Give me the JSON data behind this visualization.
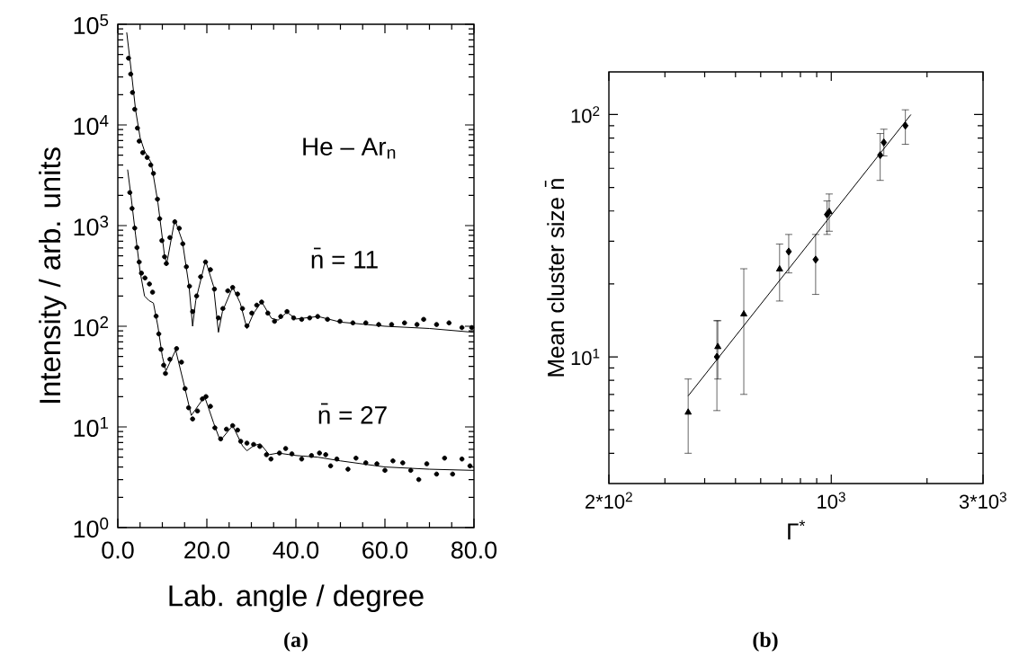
{
  "chart_data": [
    {
      "type": "scatter",
      "xlabel": "Lab. angle / degree",
      "ylabel": "Intensity / arb. units",
      "log": "y",
      "xlim": [
        0,
        80
      ],
      "ylim": [
        1,
        100000
      ],
      "xticks": [
        {
          "value": 0,
          "label": "0.0"
        },
        {
          "value": 5,
          "label": null
        },
        {
          "value": 10,
          "label": null
        },
        {
          "value": 15,
          "label": null
        },
        {
          "value": 20,
          "label": "20.0"
        },
        {
          "value": 25,
          "label": null
        },
        {
          "value": 30,
          "label": null
        },
        {
          "value": 35,
          "label": null
        },
        {
          "value": 40,
          "label": "40.0"
        },
        {
          "value": 45,
          "label": null
        },
        {
          "value": 50,
          "label": null
        },
        {
          "value": 55,
          "label": null
        },
        {
          "value": 60,
          "label": "60.0"
        },
        {
          "value": 65,
          "label": null
        },
        {
          "value": 70,
          "label": null
        },
        {
          "value": 75,
          "label": null
        },
        {
          "value": 80,
          "label": "80.0"
        }
      ],
      "yticks": [
        {
          "value": 1,
          "label": "10$^{0}$"
        },
        {
          "value": 2,
          "label": null
        },
        {
          "value": 3,
          "label": null
        },
        {
          "value": 4,
          "label": null
        },
        {
          "value": 5,
          "label": null
        },
        {
          "value": 6,
          "label": null
        },
        {
          "value": 7,
          "label": null
        },
        {
          "value": 8,
          "label": null
        },
        {
          "value": 9,
          "label": null
        },
        {
          "value": 10,
          "label": "10$^{1}$"
        },
        {
          "value": 20,
          "label": null
        },
        {
          "value": 30,
          "label": null
        },
        {
          "value": 40,
          "label": null
        },
        {
          "value": 50,
          "label": null
        },
        {
          "value": 60,
          "label": null
        },
        {
          "value": 70,
          "label": null
        },
        {
          "value": 80,
          "label": null
        },
        {
          "value": 90,
          "label": null
        },
        {
          "value": 100,
          "label": "10$^{2}$"
        },
        {
          "value": 200,
          "label": null
        },
        {
          "value": 300,
          "label": null
        },
        {
          "value": 400,
          "label": null
        },
        {
          "value": 500,
          "label": null
        },
        {
          "value": 600,
          "label": null
        },
        {
          "value": 700,
          "label": null
        },
        {
          "value": 800,
          "label": null
        },
        {
          "value": 900,
          "label": null
        },
        {
          "value": 1000,
          "label": "10$^{3}$"
        },
        {
          "value": 2000,
          "label": null
        },
        {
          "value": 3000,
          "label": null
        },
        {
          "value": 4000,
          "label": null
        },
        {
          "value": 5000,
          "label": null
        },
        {
          "value": 6000,
          "label": null
        },
        {
          "value": 7000,
          "label": null
        },
        {
          "value": 8000,
          "label": null
        },
        {
          "value": 9000,
          "label": null
        },
        {
          "value": 10000,
          "label": "10$^{4}$"
        },
        {
          "value": 20000,
          "label": null
        },
        {
          "value": 30000,
          "label": null
        },
        {
          "value": 40000,
          "label": null
        },
        {
          "value": 50000,
          "label": null
        },
        {
          "value": 60000,
          "label": null
        },
        {
          "value": 70000,
          "label": null
        },
        {
          "value": 80000,
          "label": null
        },
        {
          "value": 90000,
          "label": null
        },
        {
          "value": 100000,
          "label": "10$^{5}$"
        }
      ],
      "series": [
        {
          "marker": "circle",
          "color": "#000000",
          "x": [
            2.4,
            2.9,
            3.3,
            3.8,
            4.4,
            4.8,
            5.6,
            6.6,
            7.4,
            8.0,
            8.9,
            9.4,
            9.9,
            10.5,
            10.9,
            11.7,
            12.8,
            13.8,
            14.6,
            15.4,
            16.1,
            16.8,
            17.7,
            18.6,
            19.7,
            20.8,
            21.7,
            22.6,
            23.6,
            24.7,
            25.8,
            26.9,
            28.0,
            29.0,
            30.1,
            31.2,
            32.3,
            33.7,
            35.2,
            36.6,
            38.0,
            39.5,
            41.3,
            43.1,
            44.9,
            47.1,
            49.9,
            52.8,
            55.7,
            58.6,
            61.5,
            64.4,
            67.2,
            68.7,
            71.6,
            74.4,
            77.3,
            79.5
          ],
          "values": [
            46000,
            32000,
            21000,
            14300,
            9300,
            6900,
            5300,
            4750,
            4000,
            3300,
            1830,
            1170,
            710,
            490,
            420,
            760,
            1090,
            940,
            660,
            390,
            250,
            140,
            200,
            310,
            435,
            365,
            234,
            121,
            150,
            225,
            243,
            209,
            150,
            101,
            135,
            162,
            174,
            135,
            112,
            125,
            140,
            121,
            117,
            121,
            125,
            117,
            112,
            108,
            108,
            104,
            104,
            108,
            104,
            117,
            104,
            108,
            97,
            97
          ]
        },
        {
          "type": "line",
          "marker": "none",
          "color": "#000000",
          "x": [
            2.0,
            3.0,
            4.0,
            5.0,
            6.0,
            7.5,
            9.0,
            10.5,
            11.0,
            12.8,
            14.5,
            16.0,
            16.8,
            17.5,
            19.7,
            21.5,
            22.6,
            23.5,
            25.8,
            27.5,
            29.0,
            30.5,
            32.3,
            34.5,
            36.0,
            38.0,
            40.0,
            45.0,
            50.0,
            60.0,
            70.0,
            80.0
          ],
          "values": [
            83000,
            35000,
            14000,
            7500,
            5500,
            4200,
            1700,
            500,
            420,
            1150,
            700,
            250,
            100,
            180,
            450,
            250,
            87,
            140,
            245,
            170,
            95,
            135,
            175,
            120,
            115,
            138,
            118,
            125,
            110,
            100,
            95,
            87
          ]
        },
        {
          "marker": "circle",
          "color": "#000000",
          "x": [
            2.7,
            3.2,
            3.8,
            4.3,
            4.8,
            5.3,
            6.1,
            7.1,
            7.8,
            8.6,
            9.2,
            9.7,
            10.3,
            10.7,
            11.7,
            13.2,
            14.3,
            15.1,
            15.9,
            16.8,
            17.9,
            19.0,
            19.8,
            20.8,
            21.8,
            23.1,
            24.4,
            25.8,
            26.9,
            27.6,
            29.0,
            30.5,
            31.9,
            33.4,
            34.4,
            36.3,
            37.7,
            39.1,
            41.3,
            43.5,
            45.3,
            46.7,
            47.8,
            49.2,
            51.7,
            53.5,
            55.7,
            58.2,
            60.0,
            61.8,
            64.0,
            65.8,
            67.6,
            69.4,
            71.6,
            73.4,
            75.2,
            77.3,
            79.1
          ],
          "values": [
            2130,
            1480,
            945,
            605,
            435,
            337,
            302,
            263,
            218,
            126,
            84,
            59,
            41,
            34,
            47,
            60,
            44,
            24,
            15.5,
            12,
            14.4,
            19,
            20,
            16,
            9.8,
            7.6,
            9.5,
            10.3,
            9.3,
            7.2,
            6.9,
            6.7,
            6.4,
            5.3,
            4.8,
            5.5,
            6.1,
            5.4,
            4.8,
            5.2,
            5.5,
            5.3,
            4.1,
            4.8,
            3.8,
            4.9,
            4.4,
            4.3,
            3.7,
            4.6,
            4.4,
            3.7,
            3.0,
            4.3,
            3.4,
            4.9,
            3.4,
            4.8,
            4.1
          ]
        },
        {
          "type": "line",
          "marker": "none",
          "color": "#000000",
          "x": [
            2.2,
            3.0,
            4.0,
            5.0,
            6.0,
            7.0,
            8.0,
            9.0,
            10.0,
            10.8,
            13.0,
            15.0,
            16.5,
            17.5,
            19.5,
            21.5,
            23.0,
            25.8,
            28.0,
            29.0,
            30.5,
            32.0,
            34.0,
            36.0,
            40.0,
            45.0,
            50.0,
            60.0,
            70.0,
            80.0
          ],
          "values": [
            3600,
            1900,
            800,
            350,
            200,
            180,
            170,
            100,
            50,
            36,
            58,
            25,
            13,
            15,
            20,
            11,
            7.3,
            10.3,
            6.5,
            5.8,
            6.5,
            6.8,
            5.3,
            5.5,
            5.2,
            5.0,
            4.6,
            4.0,
            3.8,
            3.7
          ]
        }
      ],
      "annotations": [
        "He – Ar$_{n}$",
        "n̄ = 11",
        "n̄ = 27",
        "(a)"
      ]
    },
    {
      "type": "scatter",
      "xlabel": "Γ$^{*}$",
      "ylabel": "Mean cluster size n̄",
      "log": "xy",
      "xlim": [
        200,
        3000
      ],
      "ylim": [
        3,
        150
      ],
      "xticks": [
        {
          "value": 200,
          "label": "2*10$^{2}$"
        },
        {
          "value": 300,
          "label": null
        },
        {
          "value": 400,
          "label": null
        },
        {
          "value": 500,
          "label": null
        },
        {
          "value": 600,
          "label": null
        },
        {
          "value": 700,
          "label": null
        },
        {
          "value": 800,
          "label": null
        },
        {
          "value": 900,
          "label": null
        },
        {
          "value": 1000,
          "label": "10$^{3}$"
        },
        {
          "value": 2000,
          "label": null
        },
        {
          "value": 3000,
          "label": "3*10$^{3}$"
        }
      ],
      "yticks": [
        {
          "value": 4,
          "label": null
        },
        {
          "value": 5,
          "label": null
        },
        {
          "value": 6,
          "label": null
        },
        {
          "value": 7,
          "label": null
        },
        {
          "value": 8,
          "label": null
        },
        {
          "value": 9,
          "label": null
        },
        {
          "value": 10,
          "label": "10$^{1}$"
        },
        {
          "value": 20,
          "label": null
        },
        {
          "value": 30,
          "label": null
        },
        {
          "value": 40,
          "label": null
        },
        {
          "value": 50,
          "label": null
        },
        {
          "value": 60,
          "label": null
        },
        {
          "value": 70,
          "label": null
        },
        {
          "value": 80,
          "label": null
        },
        {
          "value": 90,
          "label": null
        },
        {
          "value": 100,
          "label": "10$^{2}$"
        }
      ],
      "series": [
        {
          "marker": "triangle",
          "color": "#000000",
          "x": [
            355,
            440,
            531,
            688,
            985
          ],
          "values": [
            5.9,
            11,
            15,
            23,
            39.7
          ],
          "errors": [
            [
              4.0,
              8.1
            ],
            [
              8.1,
              14.1
            ],
            [
              7.0,
              23.1
            ],
            [
              17.0,
              29.2
            ],
            [
              33,
              47
            ]
          ]
        },
        {
          "marker": "diamond",
          "color": "#000000",
          "x": [
            437,
            735,
            893,
            970,
            1425,
            1463,
            1710
          ],
          "values": [
            10,
            27.2,
            25.2,
            38.7,
            68,
            76.7,
            90
          ],
          "errors": [
            [
              6.0,
              14.1
            ],
            [
              22.2,
              32
            ],
            [
              18.1,
              32
            ],
            [
              32,
              44
            ],
            [
              53.5,
              83.5
            ],
            [
              67.5,
              87
            ],
            [
              75.4,
              104.6
            ]
          ]
        },
        {
          "type": "line",
          "marker": "none",
          "color": "#000000",
          "x": [
            355,
            1780
          ],
          "values": [
            6.9,
            100
          ]
        }
      ],
      "annotations": [
        "(b)"
      ]
    }
  ]
}
